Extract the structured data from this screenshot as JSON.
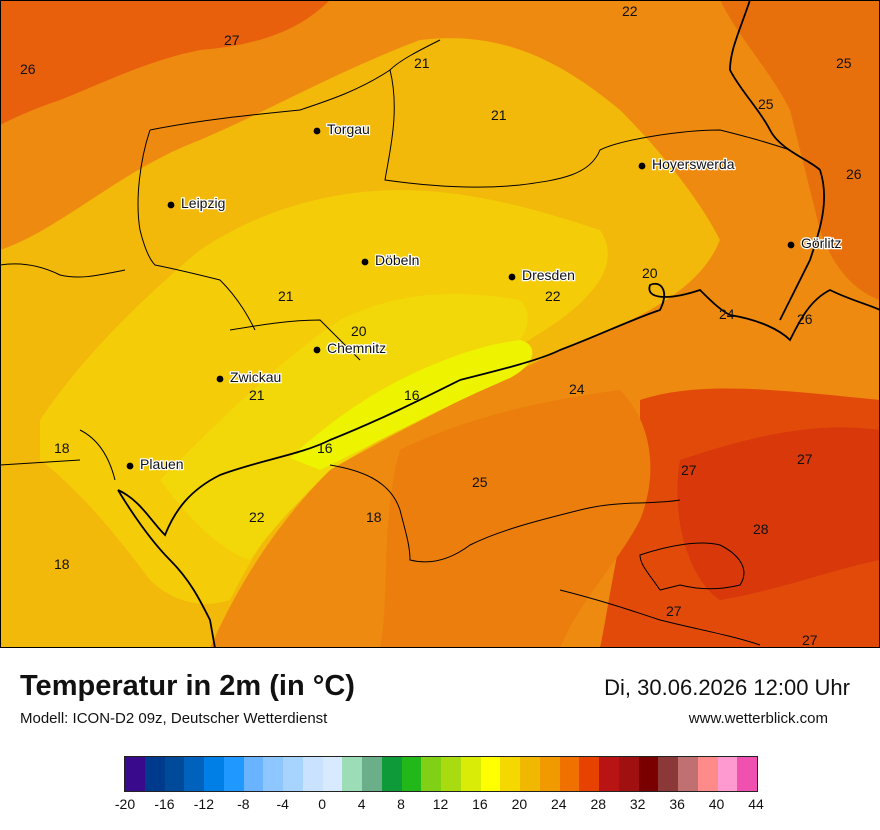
{
  "map": {
    "cities": [
      {
        "name": "Torgau",
        "id": "torgau"
      },
      {
        "name": "Hoyerswerda",
        "id": "hoyerswerda"
      },
      {
        "name": "Leipzig",
        "id": "leipzig"
      },
      {
        "name": "Görlitz",
        "id": "goerlitz"
      },
      {
        "name": "Döbeln",
        "id": "doebeln"
      },
      {
        "name": "Dresden",
        "id": "dresden"
      },
      {
        "name": "Chemnitz",
        "id": "chemnitz"
      },
      {
        "name": "Zwickau",
        "id": "zwickau"
      },
      {
        "name": "Plauen",
        "id": "plauen"
      }
    ],
    "values": [
      "22",
      "27",
      "26",
      "21",
      "25",
      "21",
      "25",
      "26",
      "20",
      "22",
      "21",
      "20",
      "24",
      "26",
      "16",
      "24",
      "21",
      "18",
      "27",
      "27",
      "25",
      "16",
      "28",
      "22",
      "18",
      "18",
      "27",
      "27"
    ]
  },
  "footer": {
    "title": "Temperatur in 2m (in °C)",
    "model": "Modell: ICON-D2 09z, Deutscher Wetterdienst",
    "datetime": "Di, 30.06.2026 12:00 Uhr",
    "site": "www.wetterblick.com"
  },
  "scale": {
    "colors": [
      "#3a0a8c",
      "#003a8c",
      "#004a9a",
      "#0062bd",
      "#0080e6",
      "#1f98ff",
      "#6ab4ff",
      "#8ec6ff",
      "#a7d4ff",
      "#c8e2ff",
      "#d8eaff",
      "#9cddb8",
      "#6aae8a",
      "#0f9a3a",
      "#22b81a",
      "#80d016",
      "#a8dc10",
      "#d8ec08",
      "#ffff00",
      "#f4d800",
      "#f0b800",
      "#f09a00",
      "#f07000",
      "#e84200",
      "#b81414",
      "#a01010",
      "#7a0000",
      "#8c3838",
      "#c07070",
      "#ff8a8a",
      "#ff9ad0",
      "#f050b0"
    ],
    "ticks": [
      "-20",
      "-16",
      "-12",
      "-8",
      "-4",
      "0",
      "4",
      "8",
      "12",
      "16",
      "20",
      "24",
      "28",
      "32",
      "36",
      "40",
      "44"
    ]
  }
}
